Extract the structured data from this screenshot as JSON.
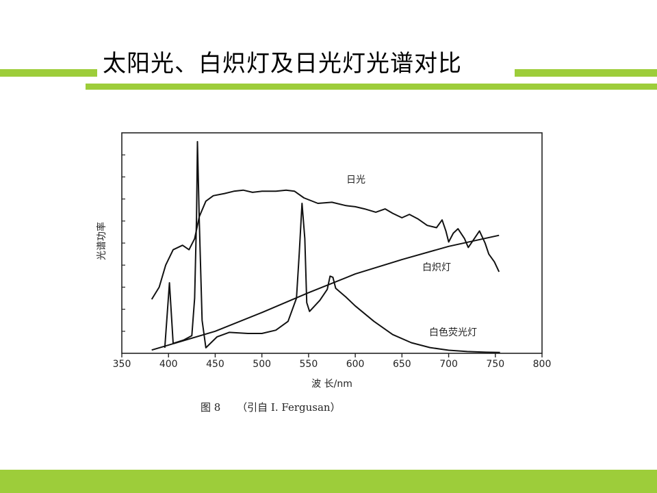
{
  "slide": {
    "title": "太阳光、白炽灯及日光灯光谱对比",
    "accent_color": "#9dcd3a"
  },
  "chart_data": {
    "type": "line",
    "title": "",
    "xlabel": "波 长/nm",
    "ylabel": "光谱功率",
    "xlim": [
      350,
      800
    ],
    "ylim": [
      0,
      10
    ],
    "x_ticks": [
      350,
      400,
      450,
      500,
      550,
      600,
      650,
      700,
      750,
      800
    ],
    "caption": "图 8     （引自 I. Fergusan）",
    "grid": false,
    "series": [
      {
        "name": "日光",
        "points": [
          [
            382,
            2.45
          ],
          [
            390,
            3.0
          ],
          [
            397,
            4.0
          ],
          [
            405,
            4.7
          ],
          [
            415,
            4.9
          ],
          [
            422,
            4.7
          ],
          [
            428,
            5.2
          ],
          [
            433,
            6.2
          ],
          [
            440,
            6.9
          ],
          [
            448,
            7.15
          ],
          [
            460,
            7.25
          ],
          [
            470,
            7.35
          ],
          [
            480,
            7.4
          ],
          [
            490,
            7.3
          ],
          [
            500,
            7.35
          ],
          [
            515,
            7.35
          ],
          [
            526,
            7.4
          ],
          [
            535,
            7.35
          ],
          [
            545,
            7.05
          ],
          [
            560,
            6.8
          ],
          [
            575,
            6.85
          ],
          [
            590,
            6.7
          ],
          [
            600,
            6.65
          ],
          [
            610,
            6.55
          ],
          [
            622,
            6.4
          ],
          [
            632,
            6.55
          ],
          [
            640,
            6.35
          ],
          [
            650,
            6.15
          ],
          [
            658,
            6.3
          ],
          [
            667,
            6.1
          ],
          [
            677,
            5.8
          ],
          [
            687,
            5.7
          ],
          [
            693,
            6.05
          ],
          [
            697,
            5.55
          ],
          [
            700,
            5.05
          ],
          [
            705,
            5.45
          ],
          [
            710,
            5.65
          ],
          [
            717,
            5.2
          ],
          [
            721,
            4.8
          ],
          [
            725,
            5.05
          ],
          [
            733,
            5.55
          ],
          [
            739,
            5.0
          ],
          [
            743,
            4.5
          ],
          [
            749,
            4.15
          ],
          [
            754,
            3.7
          ]
        ]
      },
      {
        "name": "白炽灯",
        "points": [
          [
            382,
            0.15
          ],
          [
            450,
            1.0
          ],
          [
            500,
            1.85
          ],
          [
            550,
            2.75
          ],
          [
            600,
            3.6
          ],
          [
            650,
            4.25
          ],
          [
            700,
            4.85
          ],
          [
            754,
            5.35
          ]
        ]
      },
      {
        "name": "白色荧光灯",
        "points": [
          [
            396,
            0.25
          ],
          [
            401,
            3.2
          ],
          [
            405,
            0.45
          ],
          [
            416,
            0.6
          ],
          [
            425,
            0.8
          ],
          [
            428,
            2.5
          ],
          [
            430,
            6.2
          ],
          [
            431,
            9.6
          ],
          [
            433,
            6.0
          ],
          [
            436,
            1.5
          ],
          [
            440,
            0.25
          ],
          [
            452,
            0.75
          ],
          [
            465,
            0.95
          ],
          [
            485,
            0.9
          ],
          [
            500,
            0.9
          ],
          [
            515,
            1.05
          ],
          [
            528,
            1.45
          ],
          [
            537,
            2.5
          ],
          [
            540,
            4.5
          ],
          [
            543,
            6.8
          ],
          [
            546,
            5.2
          ],
          [
            548,
            2.3
          ],
          [
            551,
            1.9
          ],
          [
            562,
            2.4
          ],
          [
            570,
            2.9
          ],
          [
            573,
            3.5
          ],
          [
            576,
            3.45
          ],
          [
            579,
            2.95
          ],
          [
            590,
            2.55
          ],
          [
            600,
            2.15
          ],
          [
            620,
            1.45
          ],
          [
            640,
            0.85
          ],
          [
            660,
            0.48
          ],
          [
            680,
            0.26
          ],
          [
            700,
            0.14
          ],
          [
            720,
            0.08
          ],
          [
            740,
            0.05
          ],
          [
            755,
            0.04
          ]
        ]
      }
    ],
    "annotations": [
      {
        "text": "日光",
        "series": "日光"
      },
      {
        "text": "白炽灯",
        "series": "白炽灯"
      },
      {
        "text": "白色荧光灯",
        "series": "白色荧光灯"
      }
    ]
  }
}
